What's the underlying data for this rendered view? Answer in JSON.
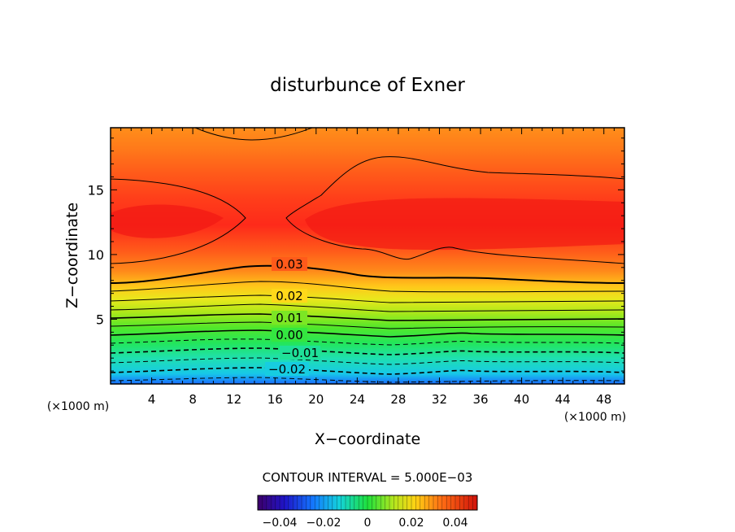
{
  "chart_data": {
    "type": "heatmap",
    "title": "disturbunce of Exner",
    "xlabel": "X−coordinate",
    "ylabel": "Z−coordinate",
    "x_unit": "(×1000 m)",
    "x_ticks": [
      "4",
      "8",
      "12",
      "16",
      "20",
      "24",
      "28",
      "32",
      "36",
      "40",
      "44",
      "48"
    ],
    "y_ticks": [
      "5",
      "10",
      "15"
    ],
    "xlim": [
      0,
      50
    ],
    "ylim": [
      0,
      19.8
    ],
    "contour_interval_label": "CONTOUR INTERVAL = 5.000E−03",
    "contour_labels": [
      "0.03",
      "0.02",
      "0.01",
      "0.00",
      "−0.01",
      "−0.02"
    ],
    "colorbar": {
      "range": [
        -0.05,
        0.05
      ],
      "tick_labels": [
        "−0.04",
        "−0.02",
        "0",
        "0.02",
        "0.04"
      ],
      "colormap": "rainbow"
    },
    "field_profile": {
      "z": [
        0,
        1,
        2,
        3,
        4,
        5,
        6,
        7,
        8,
        9.5,
        11,
        12.5,
        15,
        16,
        17,
        18,
        19.8
      ],
      "value": [
        -0.026,
        -0.02,
        -0.012,
        -0.005,
        0.004,
        0.012,
        0.018,
        0.023,
        0.028,
        0.031,
        0.034,
        0.035,
        0.033,
        0.031,
        0.029,
        0.027,
        0.025
      ]
    }
  }
}
